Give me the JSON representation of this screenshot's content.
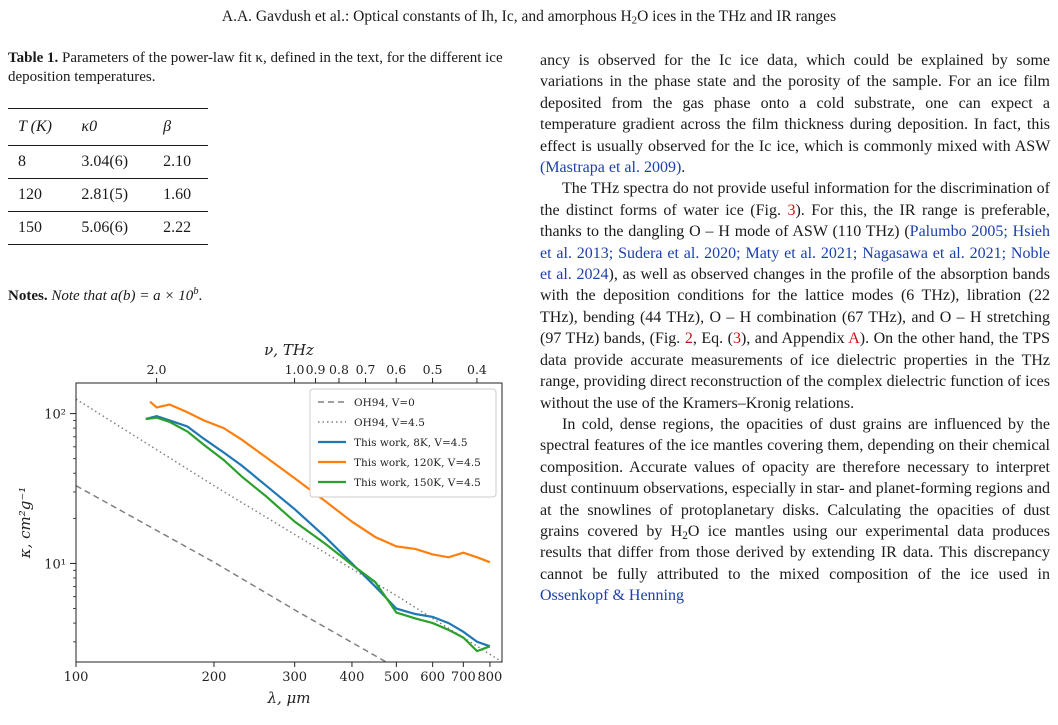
{
  "header": {
    "text_before": "A.A. Gavdush et al.: Optical constants of Ih, Ic, and amorphous H",
    "sub": "2",
    "text_after": "O ices in the THz and IR ranges"
  },
  "table": {
    "caption_label": "Table 1.",
    "caption_text": "Parameters of the power-law fit κ, defined in the text, for the different ice deposition temperatures.",
    "headers": [
      "T (K)",
      "κ0",
      "β"
    ],
    "rows": [
      [
        "8",
        "3.04(6)",
        "2.10"
      ],
      [
        "120",
        "2.81(5)",
        "1.60"
      ],
      [
        "150",
        "5.06(6)",
        "2.22"
      ]
    ],
    "notes_label": "Notes.",
    "notes_text": "Note that a(b) = a × 10",
    "notes_sup": "b"
  },
  "chart_data": {
    "type": "line",
    "xlabel": "λ, μm",
    "ylabel": "κ, cm²g⁻¹",
    "top_xlabel": "ν, THz",
    "x_scale": "log",
    "y_scale": "log",
    "xlim": [
      100,
      850
    ],
    "ylim": [
      2.2,
      160
    ],
    "x_ticks": [
      100,
      200,
      300,
      400,
      500,
      600,
      700,
      800
    ],
    "x_tick_labels": [
      "100",
      "200",
      "300",
      "400",
      "500",
      "600",
      "700",
      "800"
    ],
    "y_ticks": [
      10,
      100
    ],
    "y_tick_labels": [
      "10¹",
      "10²"
    ],
    "top_ticks": [
      0.4,
      0.5,
      0.6,
      0.7,
      0.8,
      0.9,
      1.0,
      2.0
    ],
    "top_tick_labels": [
      "0.4",
      "0.5",
      "0.6",
      "0.7",
      "0.8",
      "0.9",
      "1.0",
      "2.0"
    ],
    "legend_position": "top-right",
    "series": [
      {
        "name": "OH94, V=0",
        "color": "#808080",
        "style": "dashed",
        "x": [
          100,
          200,
          300,
          475
        ],
        "y": [
          33,
          10.2,
          4.9,
          2.2
        ]
      },
      {
        "name": "OH94, V=4.5",
        "color": "#808080",
        "style": "dotted",
        "x": [
          100,
          200,
          300,
          400,
          500,
          600,
          700,
          850
        ],
        "y": [
          125,
          33,
          15.6,
          9.2,
          6.1,
          4.3,
          3.2,
          2.2
        ]
      },
      {
        "name": "This work,  8K, V=4.5",
        "color": "#1f77b4",
        "style": "solid",
        "x": [
          142,
          150,
          160,
          175,
          190,
          210,
          230,
          260,
          300,
          350,
          400,
          450,
          500,
          550,
          600,
          650,
          700,
          750,
          800
        ],
        "y": [
          92,
          96,
          90,
          82,
          68,
          55,
          45,
          33,
          23,
          15,
          10,
          7,
          5,
          4.6,
          4.4,
          4.0,
          3.5,
          3.0,
          2.8
        ]
      },
      {
        "name": "This work, 120K, V=4.5",
        "color": "#ff7f0e",
        "style": "solid",
        "x": [
          145,
          150,
          160,
          175,
          190,
          210,
          230,
          260,
          300,
          350,
          400,
          450,
          500,
          550,
          600,
          650,
          700,
          750,
          800
        ],
        "y": [
          120,
          110,
          115,
          102,
          90,
          80,
          67,
          51,
          37,
          26,
          19,
          15,
          13,
          12.5,
          11.5,
          11,
          11.8,
          11,
          10.2
        ]
      },
      {
        "name": "This work, 150K, V=4.5",
        "color": "#2ca02c",
        "style": "solid",
        "x": [
          142,
          150,
          160,
          175,
          190,
          210,
          230,
          260,
          300,
          350,
          400,
          450,
          500,
          550,
          600,
          650,
          700,
          750,
          800
        ],
        "y": [
          92,
          94,
          88,
          76,
          62,
          49,
          38,
          28,
          19,
          13.5,
          9.8,
          7.5,
          4.7,
          4.3,
          4.0,
          3.6,
          3.2,
          2.6,
          2.8
        ]
      }
    ]
  },
  "text": {
    "p1": "ancy is observed for the Ic ice data, which could be explained by some variations in the phase state and the porosity of the sample. For an ice film deposited from the gas phase onto a cold substrate, one can expect a temperature gradient across the film thickness during deposition. In fact, this effect is usually observed for the Ic ice, which is commonly mixed with ASW",
    "p1_ref": "(Mastrapa et al. 2009)",
    "p1_end": ".",
    "p2a": "The THz spectra do not provide useful information for the discrimination of the distinct forms of water ice (Fig.",
    "p2_fig3": "3",
    "p2b": "). For this, the IR range is preferable, thanks to the dangling O – H mode of ASW (110 THz) (",
    "p2_refs": "Palumbo 2005; Hsieh et al. 2013; Sudera et al. 2020; Maty et al. 2021; Nagasawa et al. 2021; Noble et al. 2024",
    "p2c": "), as well as observed changes in the profile of the absorption bands with the deposition conditions for the lattice modes (6 THz), libration (22 THz), bending (44 THz), O – H combination (67 THz), and O – H stretching (97 THz) bands, (Fig.",
    "p2_fig2": "2",
    "p2d": ", Eq. (",
    "p2_eq": "3",
    "p2e": "), and Appendix",
    "p2_app": "A",
    "p2f": "). On the other hand, the TPS data provide accurate measurements of ice dielectric properties in the THz range, providing direct reconstruction of the complex dielectric function of ices without the use of the Kramers–Kronig relations.",
    "p3a": "In cold, dense regions, the opacities of dust grains are influenced by the spectral features of the ice mantles covering them, depending on their chemical composition. Accurate values of opacity are therefore necessary to interpret dust continuum observations, especially in star- and planet-forming regions and at the snowlines of protoplanetary disks. Calculating the opacities of dust grains covered by H",
    "p3_sub": "2",
    "p3b": "O ice mantles using our experimental data produces results that differ from those derived by extending IR data. This discrepancy cannot be fully attributed to the mixed composition of the ice used in",
    "p3_ref": "Ossenkopf & Henning"
  }
}
